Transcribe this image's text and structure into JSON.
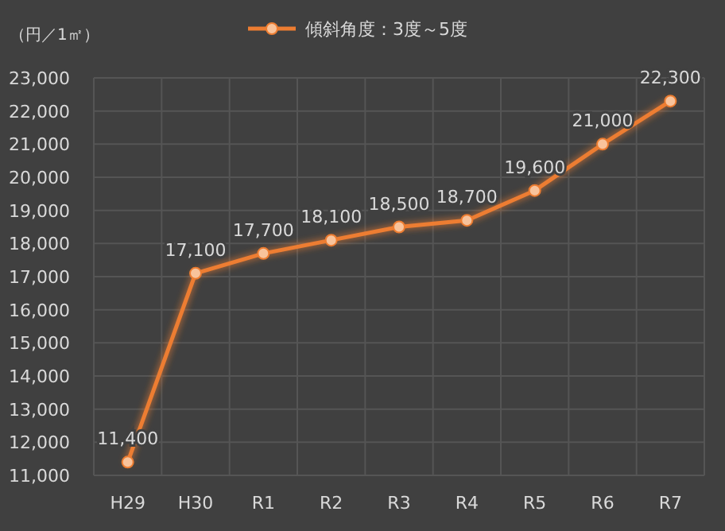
{
  "chart_data": {
    "type": "line",
    "ylabel": "（円／1㎡）",
    "categories": [
      "H29",
      "H30",
      "R1",
      "R2",
      "R3",
      "R4",
      "R5",
      "R6",
      "R7"
    ],
    "series": [
      {
        "name": "傾斜角度：3度～5度",
        "color": "#ed7d31",
        "values": [
          11400,
          17100,
          17700,
          18100,
          18500,
          18700,
          19600,
          21000,
          22300
        ],
        "value_labels": [
          "11,400",
          "17,100",
          "17,700",
          "18,100",
          "18,500",
          "18,700",
          "19,600",
          "21,000",
          "22,300"
        ]
      }
    ],
    "ylim": [
      11000,
      23000
    ],
    "yticks": [
      {
        "value": 11000,
        "label": "11,000"
      },
      {
        "value": 12000,
        "label": "12,000"
      },
      {
        "value": 13000,
        "label": "13,000"
      },
      {
        "value": 14000,
        "label": "14,000"
      },
      {
        "value": 15000,
        "label": "15,000"
      },
      {
        "value": 16000,
        "label": "16,000"
      },
      {
        "value": 17000,
        "label": "17,000"
      },
      {
        "value": 18000,
        "label": "18,000"
      },
      {
        "value": 19000,
        "label": "19,000"
      },
      {
        "value": 20000,
        "label": "20,000"
      },
      {
        "value": 21000,
        "label": "21,000"
      },
      {
        "value": 22000,
        "label": "22,000"
      },
      {
        "value": 23000,
        "label": "23,000"
      }
    ],
    "grid": true,
    "legend": "top",
    "marker": "circle",
    "line_style": "solid"
  }
}
